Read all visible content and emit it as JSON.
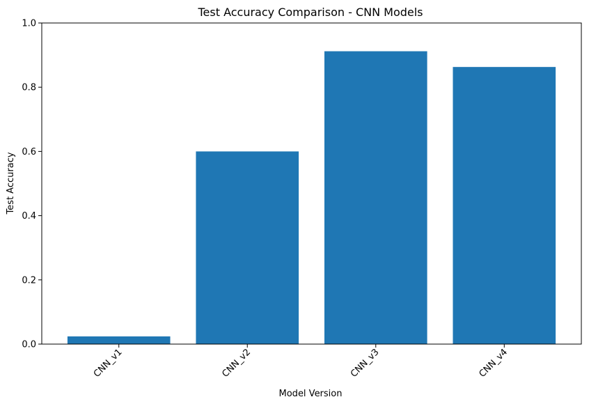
{
  "chart_data": {
    "type": "bar",
    "title": "Test Accuracy Comparison - CNN Models",
    "xlabel": "Model Version",
    "ylabel": "Test Accuracy",
    "categories": [
      "CNN_v1",
      "CNN_v2",
      "CNN_v3",
      "CNN_v4"
    ],
    "values": [
      0.024,
      0.6,
      0.912,
      0.863
    ],
    "ylim": [
      0,
      1.0
    ],
    "yticks": [
      0.0,
      0.2,
      0.4,
      0.6,
      0.8,
      1.0
    ],
    "ytick_labels": [
      "0.0",
      "0.2",
      "0.4",
      "0.6",
      "0.8",
      "1.0"
    ],
    "xtick_rotation_deg": 45,
    "grid": false,
    "legend": "none",
    "bar_color": "#1f77b4"
  }
}
